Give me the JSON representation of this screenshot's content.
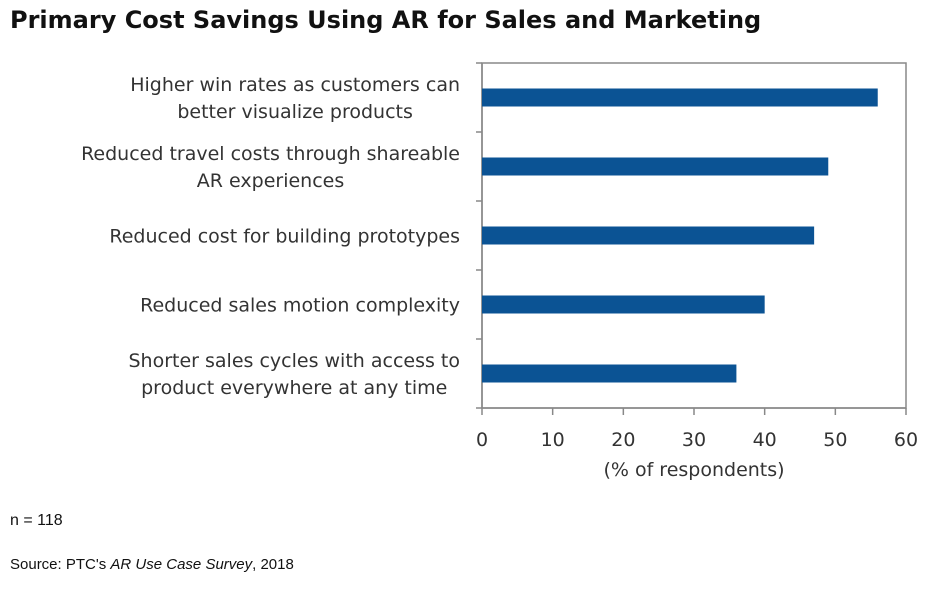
{
  "title": "Primary Cost Savings Using AR for Sales and Marketing",
  "note": "n = 118",
  "source": {
    "prefix": "Source: PTC's ",
    "italic": "AR Use Case Survey",
    "suffix": ", 2018"
  },
  "colors": {
    "bar": "#0b5394",
    "axis": "#888888",
    "border": "#888888"
  },
  "chart_data": {
    "type": "bar",
    "orientation": "horizontal",
    "categories": [
      [
        "Higher win rates as customers can",
        "better visualize products"
      ],
      [
        "Reduced travel costs through shareable",
        "AR experiences"
      ],
      [
        "Reduced cost for building prototypes"
      ],
      [
        "Reduced sales motion complexity"
      ],
      [
        "Shorter sales cycles with access to",
        "product everywhere at any time"
      ]
    ],
    "values": [
      56,
      49,
      47,
      40,
      36
    ],
    "xlabel": "(% of respondents)",
    "xlim": [
      0,
      60
    ],
    "xticks": [
      "0",
      "10",
      "20",
      "30",
      "40",
      "50",
      "60"
    ],
    "grid": false,
    "legend": "none"
  }
}
